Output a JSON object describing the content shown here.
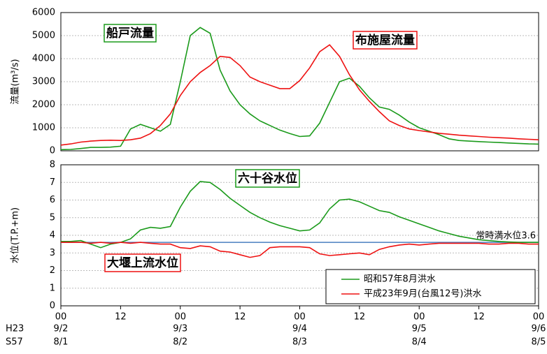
{
  "chart_data": [
    {
      "type": "line",
      "ylabel": "流量(m³/s)",
      "xlim": [
        0,
        96
      ],
      "ylim": [
        0,
        6000
      ],
      "yticks": [
        0,
        1000,
        2000,
        3000,
        4000,
        5000,
        6000
      ],
      "grid": true,
      "x": [
        0,
        2,
        4,
        6,
        8,
        10,
        12,
        14,
        16,
        18,
        20,
        22,
        24,
        26,
        28,
        30,
        32,
        34,
        36,
        38,
        40,
        42,
        44,
        46,
        48,
        50,
        52,
        54,
        56,
        58,
        60,
        62,
        64,
        66,
        68,
        70,
        72,
        74,
        76,
        78,
        80,
        82,
        84,
        86,
        88,
        90,
        92,
        94,
        96
      ],
      "series": [
        {
          "color": "#1a9a1a",
          "values": [
            50,
            60,
            100,
            150,
            150,
            160,
            200,
            950,
            1150,
            1000,
            850,
            1150,
            3000,
            5000,
            5350,
            5100,
            3500,
            2600,
            2000,
            1600,
            1300,
            1100,
            900,
            750,
            620,
            650,
            1200,
            2100,
            3000,
            3150,
            2800,
            2300,
            1900,
            1800,
            1550,
            1250,
            1000,
            850,
            700,
            520,
            450,
            420,
            400,
            380,
            360,
            340,
            320,
            300,
            290
          ]
        },
        {
          "color": "#ee1111",
          "values": [
            250,
            300,
            380,
            420,
            450,
            460,
            450,
            480,
            550,
            750,
            1100,
            1600,
            2400,
            3000,
            3400,
            3700,
            4100,
            4050,
            3700,
            3200,
            3000,
            2850,
            2700,
            2700,
            3050,
            3600,
            4300,
            4600,
            4100,
            3300,
            2650,
            2150,
            1700,
            1300,
            1100,
            950,
            880,
            820,
            760,
            720,
            680,
            650,
            620,
            590,
            570,
            550,
            520,
            500,
            480
          ]
        }
      ],
      "annotations": [
        {
          "text": "船戸流量",
          "color": "#1a9a1a"
        },
        {
          "text": "布施屋流量",
          "color": "#ee1111"
        }
      ]
    },
    {
      "type": "line",
      "ylabel": "水位(T.P.+m)",
      "xlim": [
        0,
        96
      ],
      "ylim": [
        0,
        8
      ],
      "yticks": [
        0,
        1,
        2,
        3,
        4,
        5,
        6,
        7,
        8
      ],
      "grid": true,
      "xticks": [
        {
          "value": 0,
          "label": "00"
        },
        12,
        {
          "value": 24,
          "label": "00"
        },
        {
          "value": 36,
          "label": "12"
        },
        {
          "value": 48,
          "label": "00"
        },
        {
          "value": 60,
          "label": "12"
        },
        {
          "value": 72,
          "label": "00"
        },
        {
          "value": 84,
          "label": "12"
        },
        {
          "value": 96,
          "label": "00"
        }
      ],
      "date_rows": [
        {
          "label": "H23",
          "dates": [
            "9/2",
            "9/3",
            "9/4",
            "9/5",
            "9/6"
          ]
        },
        {
          "label": "S57",
          "dates": [
            "8/1",
            "8/2",
            "8/3",
            "8/4",
            "8/5"
          ]
        }
      ],
      "x": [
        0,
        2,
        4,
        6,
        8,
        10,
        12,
        14,
        16,
        18,
        20,
        22,
        24,
        26,
        28,
        30,
        32,
        34,
        36,
        38,
        40,
        42,
        44,
        46,
        48,
        50,
        52,
        54,
        56,
        58,
        60,
        62,
        64,
        66,
        68,
        70,
        72,
        74,
        76,
        78,
        80,
        82,
        84,
        86,
        88,
        90,
        92,
        94,
        96
      ],
      "series": [
        {
          "name": "昭和57年8月洪水",
          "color": "#1a9a1a",
          "values": [
            3.65,
            3.65,
            3.7,
            3.5,
            3.3,
            3.5,
            3.6,
            3.8,
            4.3,
            4.45,
            4.4,
            4.5,
            5.6,
            6.5,
            7.05,
            7.0,
            6.6,
            6.1,
            5.7,
            5.3,
            5.0,
            4.75,
            4.55,
            4.4,
            4.25,
            4.3,
            4.7,
            5.5,
            6.0,
            6.05,
            5.9,
            5.65,
            5.4,
            5.3,
            5.05,
            4.85,
            4.65,
            4.45,
            4.25,
            4.1,
            3.95,
            3.85,
            3.75,
            3.7,
            3.65,
            3.62,
            3.6,
            3.6,
            3.6
          ]
        },
        {
          "name": "平成23年9月(台風12号)洪水",
          "color": "#ee1111",
          "values": [
            3.6,
            3.6,
            3.6,
            3.55,
            3.6,
            3.55,
            3.6,
            3.55,
            3.6,
            3.55,
            3.5,
            3.5,
            3.3,
            3.25,
            3.4,
            3.35,
            3.1,
            3.05,
            2.9,
            2.75,
            2.85,
            3.3,
            3.35,
            3.35,
            3.35,
            3.3,
            2.95,
            2.85,
            2.9,
            2.95,
            3.0,
            2.9,
            3.2,
            3.35,
            3.45,
            3.5,
            3.45,
            3.5,
            3.55,
            3.55,
            3.55,
            3.55,
            3.55,
            3.5,
            3.5,
            3.55,
            3.55,
            3.5,
            3.5
          ]
        }
      ],
      "reference_line": {
        "value": 3.6,
        "text": "常時満水位3.6",
        "color": "#4a7fc1"
      },
      "legend": "lower right",
      "annotations": [
        {
          "text": "六十谷水位",
          "color": "#1a9a1a"
        },
        {
          "text": "大堰上流水位",
          "color": "#ee1111"
        }
      ]
    }
  ]
}
